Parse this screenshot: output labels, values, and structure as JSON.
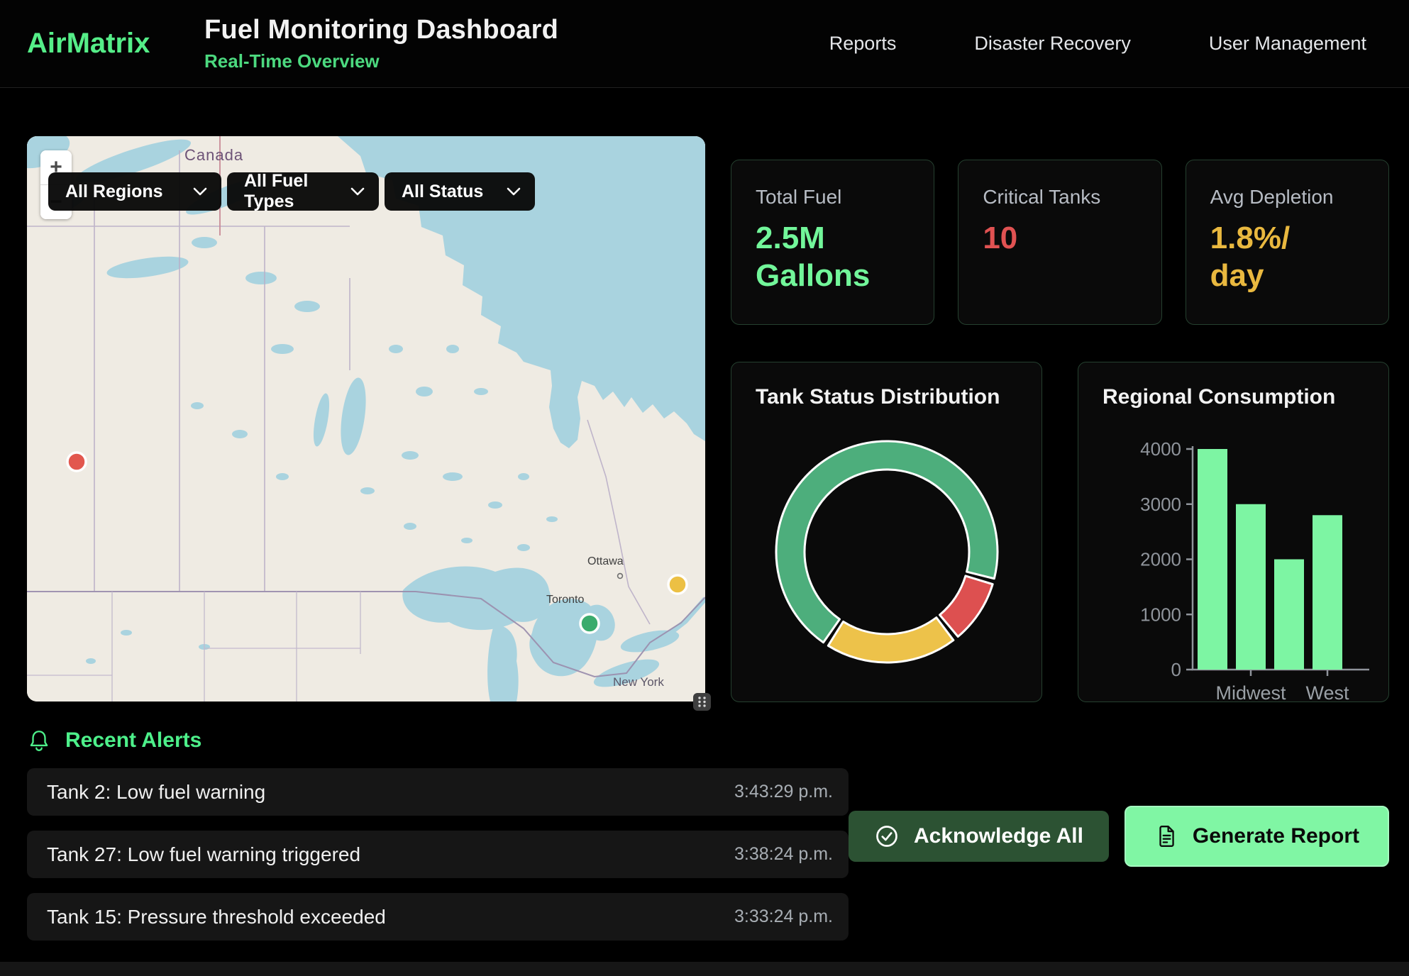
{
  "header": {
    "brand": "AirMatrix",
    "title": "Fuel Monitoring Dashboard",
    "subtitle": "Real-Time Overview",
    "nav": [
      {
        "label": "Reports"
      },
      {
        "label": "Disaster Recovery"
      },
      {
        "label": "User Management"
      }
    ]
  },
  "map": {
    "zoom_in": "+",
    "zoom_out": "−",
    "filters": [
      {
        "label": "All Regions"
      },
      {
        "label": "All Fuel Types"
      },
      {
        "label": "All Status"
      }
    ],
    "labels": {
      "country": "Canada",
      "cities": [
        "Ottawa",
        "Toronto"
      ],
      "us_region": "New York"
    },
    "markers": [
      {
        "name": "red",
        "color": "#e2574e"
      },
      {
        "name": "yellow",
        "color": "#ecc044"
      },
      {
        "name": "green",
        "color": "#3bab6d"
      }
    ]
  },
  "stats": [
    {
      "label": "Total Fuel",
      "value": "2.5M Gallons",
      "lines": [
        "2.5M",
        "Gallons"
      ],
      "color": "#72f69a"
    },
    {
      "label": "Critical Tanks",
      "value": "10",
      "lines": [
        "10"
      ],
      "color": "#e05252"
    },
    {
      "label": "Avg Depletion",
      "value": "1.8%/day",
      "lines": [
        "1.8%/",
        "day"
      ],
      "color": "#e9b83f"
    }
  ],
  "chart_data": [
    {
      "type": "donut",
      "title": "Tank Status Distribution",
      "start_deg": 215,
      "gap_deg": 3,
      "segments": [
        {
          "name": "green",
          "color": "#4dae7c",
          "sweep_deg": 249,
          "percent": 69
        },
        {
          "name": "red",
          "color": "#dd5050",
          "sweep_deg": 33,
          "percent": 9
        },
        {
          "name": "yellow",
          "color": "#edc24a",
          "sweep_deg": 69,
          "percent": 19
        }
      ]
    },
    {
      "type": "bar",
      "title": "Regional Consumption",
      "categories": [
        "",
        "Midwest",
        "",
        "West"
      ],
      "values": [
        4000,
        3000,
        2000,
        2800
      ],
      "ylim": [
        0,
        4000
      ],
      "yticks": [
        0,
        1000,
        2000,
        3000,
        4000
      ],
      "bar_color": "#7df5a3",
      "axis_color": "#8f949b",
      "grid": false,
      "legend": false
    }
  ],
  "alerts": {
    "title": "Recent Alerts",
    "items": [
      {
        "text": "Tank 2: Low fuel warning",
        "time": "3:43:29 p.m."
      },
      {
        "text": "Tank 27: Low fuel warning triggered",
        "time": "3:38:24 p.m."
      },
      {
        "text": "Tank 15: Pressure threshold exceeded",
        "time": "3:33:24 p.m."
      }
    ]
  },
  "actions": {
    "acknowledge": "Acknowledge All",
    "generate": "Generate Report"
  },
  "icons": {
    "bell": "bell-icon",
    "check": "check-circle-icon",
    "document": "document-icon",
    "chevron": "chevron-down-icon",
    "grip": "drag-handle-icon"
  },
  "colors": {
    "accent_green": "#55ee88",
    "bright_green": "#80f6a4",
    "dark_green_button": "#2c5233",
    "critical_red": "#e05252",
    "warning_amber": "#e9b83f",
    "card_border": "#25402f"
  }
}
